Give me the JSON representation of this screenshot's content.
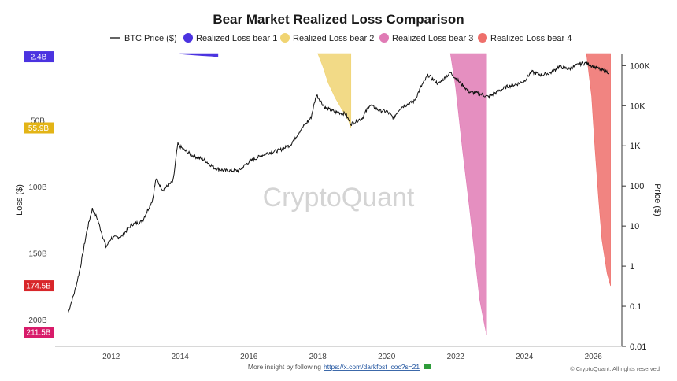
{
  "colors": {
    "btc_line": "#111111",
    "bear1": "#4b33e0",
    "bear2": "#f0d472",
    "bear3": "#e07bb5",
    "bear4": "#ee6f6b",
    "tag_bear1": "#4b33e0",
    "tag_bear2": "#e3b416",
    "tag_bear3": "#d81b6a",
    "tag_bear4": "#d8262a",
    "watermark": "#d4d4d4",
    "link": "#1a4f9c"
  },
  "watermark": "CryptoQuant",
  "footer": {
    "text": "More insight by following",
    "link": "https://x.com/darkfost_coc?s=21"
  },
  "copyright": "© CryptoQuant. All rights reserved",
  "chart_data": {
    "type": "area",
    "title": "Bear Market Realized Loss Comparison",
    "legend_position": "top",
    "grid": false,
    "x_ticks": [
      "2012",
      "2014",
      "2016",
      "2018",
      "2020",
      "2022",
      "2024",
      "2026"
    ],
    "xlim": [
      2010.6,
      2026.6
    ],
    "left_axis": {
      "label": "Loss ($)",
      "inverted": true,
      "ticks": [
        "50B",
        "100B",
        "150B",
        "200B"
      ],
      "tick_values": [
        50,
        100,
        150,
        200
      ],
      "range": [
        0,
        220
      ]
    },
    "right_axis": {
      "label": "Price ($)",
      "scale": "log",
      "ticks": [
        "100K",
        "10K",
        "1K",
        "100",
        "10",
        "1",
        "0.1",
        "0.01"
      ],
      "tick_values": [
        100000,
        10000,
        1000,
        100,
        10,
        1,
        0.1,
        0.01
      ],
      "range": [
        0.01,
        200000
      ]
    },
    "value_tags": [
      {
        "label": "2.4B",
        "value": 2.4,
        "color_key": "tag_bear1"
      },
      {
        "label": "55.9B",
        "value": 55.9,
        "color_key": "tag_bear2"
      },
      {
        "label": "174.5B",
        "value": 174.5,
        "color_key": "tag_bear4"
      },
      {
        "label": "211.5B",
        "value": 211.5,
        "color_key": "tag_bear3"
      }
    ],
    "series": [
      {
        "name": "BTC Price ($)",
        "type": "line",
        "axis": "right",
        "color_key": "btc_line",
        "x": [
          2010.75,
          2010.95,
          2011.1,
          2011.3,
          2011.45,
          2011.6,
          2011.85,
          2012.0,
          2012.3,
          2012.6,
          2012.9,
          2013.2,
          2013.3,
          2013.5,
          2013.8,
          2013.93,
          2014.1,
          2014.4,
          2014.7,
          2015.0,
          2015.3,
          2015.7,
          2016.0,
          2016.5,
          2016.9,
          2017.2,
          2017.5,
          2017.8,
          2017.96,
          2018.2,
          2018.5,
          2018.8,
          2018.96,
          2019.3,
          2019.5,
          2019.8,
          2020.0,
          2020.2,
          2020.4,
          2020.8,
          2021.0,
          2021.2,
          2021.5,
          2021.85,
          2022.1,
          2022.4,
          2022.7,
          2022.95,
          2023.2,
          2023.5,
          2023.8,
          2024.0,
          2024.2,
          2024.5,
          2024.8,
          2025.0,
          2025.3,
          2025.6,
          2025.8,
          2026.0,
          2026.2,
          2026.45
        ],
        "values": [
          0.07,
          0.25,
          0.9,
          8,
          27,
          15,
          3,
          5,
          5.5,
          11,
          13,
          45,
          150,
          80,
          130,
          1100,
          800,
          550,
          450,
          280,
          240,
          240,
          400,
          650,
          780,
          1050,
          2500,
          5000,
          19000,
          9000,
          7000,
          6300,
          3500,
          5000,
          10500,
          7500,
          7200,
          5000,
          9000,
          13000,
          30000,
          58000,
          35000,
          67000,
          40000,
          22000,
          20000,
          16500,
          22000,
          30000,
          35000,
          42000,
          70000,
          58000,
          68000,
          95000,
          82000,
          110000,
          115000,
          95000,
          80000,
          68000
        ]
      },
      {
        "name": "Realized Loss bear 1",
        "type": "area",
        "axis": "left",
        "color_key": "bear1",
        "x": [
          2014.0,
          2014.3,
          2014.6,
          2014.9,
          2015.1
        ],
        "values": [
          0.3,
          0.9,
          1.5,
          2.0,
          2.4
        ]
      },
      {
        "name": "Realized Loss bear 2",
        "type": "area",
        "axis": "left",
        "color_key": "bear2",
        "x": [
          2018.0,
          2018.15,
          2018.3,
          2018.5,
          2018.7,
          2018.9,
          2018.96
        ],
        "values": [
          0,
          10,
          22,
          33,
          42,
          51,
          55.9
        ]
      },
      {
        "name": "Realized Loss bear 3",
        "type": "area",
        "axis": "left",
        "color_key": "bear3",
        "x": [
          2021.85,
          2022.0,
          2022.2,
          2022.4,
          2022.55,
          2022.7,
          2022.85,
          2022.9
        ],
        "values": [
          0,
          25,
          72,
          115,
          150,
          185,
          205,
          211.5
        ]
      },
      {
        "name": "Realized Loss bear 4",
        "type": "area",
        "axis": "left",
        "color_key": "bear4",
        "x": [
          2025.8,
          2025.95,
          2026.05,
          2026.15,
          2026.25,
          2026.4,
          2026.5
        ],
        "values": [
          0,
          32,
          72,
          108,
          140,
          165,
          174.5
        ]
      }
    ]
  }
}
